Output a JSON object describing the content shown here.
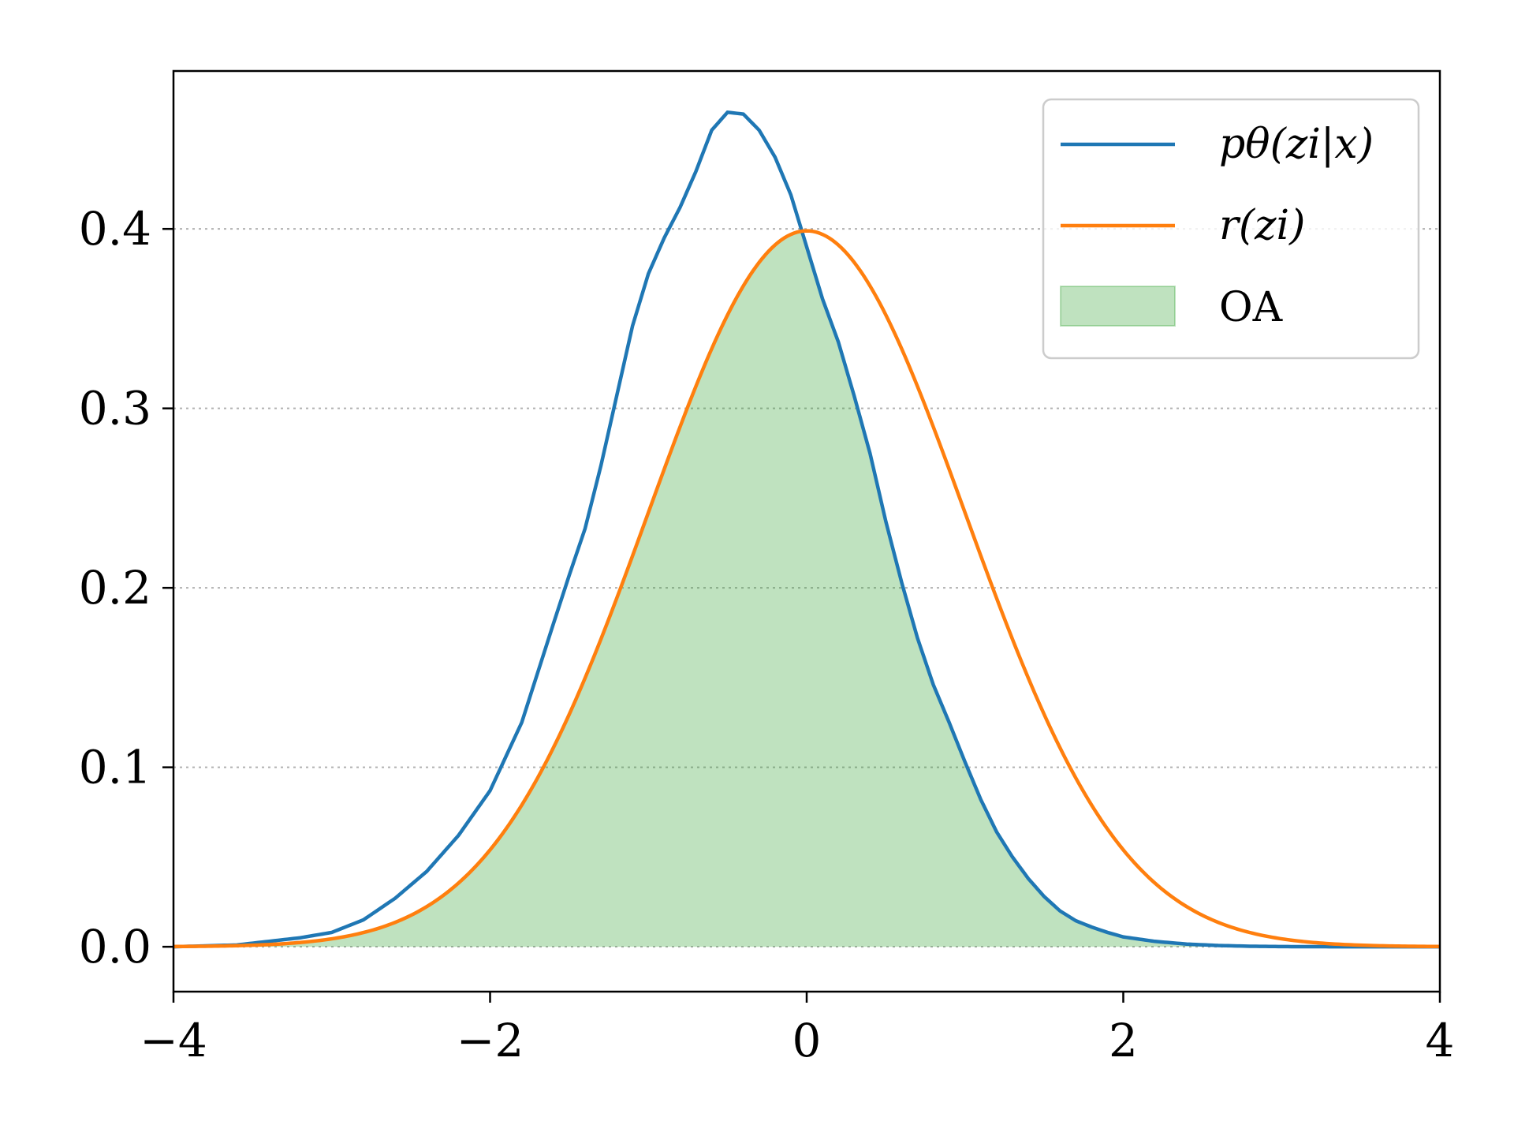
{
  "chart_data": {
    "type": "line",
    "xlim": [
      -4,
      4
    ],
    "ylim": [
      -0.025,
      0.488
    ],
    "x_ticks": [
      -4,
      -2,
      0,
      2,
      4
    ],
    "x_tick_labels": [
      "−4",
      "−2",
      "0",
      "2",
      "4"
    ],
    "y_ticks": [
      0.0,
      0.1,
      0.2,
      0.3,
      0.4
    ],
    "y_tick_labels": [
      "0.0",
      "0.1",
      "0.2",
      "0.3",
      "0.4"
    ],
    "grid": "horizontal-dotted",
    "legend_position": "top-right",
    "series": [
      {
        "name": "pθ(zi|x)",
        "color": "#1f77b4",
        "x": [
          -4.0,
          -3.6,
          -3.4,
          -3.2,
          -3.0,
          -2.8,
          -2.6,
          -2.4,
          -2.2,
          -2.0,
          -1.8,
          -1.6,
          -1.5,
          -1.4,
          -1.3,
          -1.2,
          -1.1,
          -1.0,
          -0.9,
          -0.8,
          -0.7,
          -0.6,
          -0.5,
          -0.4,
          -0.3,
          -0.2,
          -0.1,
          0.0,
          0.1,
          0.2,
          0.3,
          0.4,
          0.5,
          0.6,
          0.7,
          0.8,
          0.9,
          1.0,
          1.1,
          1.2,
          1.3,
          1.4,
          1.5,
          1.6,
          1.7,
          1.8,
          1.9,
          2.0,
          2.2,
          2.4,
          2.6,
          2.8,
          3.0,
          3.4,
          4.0
        ],
        "y": [
          0.0,
          0.001,
          0.003,
          0.005,
          0.008,
          0.015,
          0.027,
          0.042,
          0.062,
          0.087,
          0.125,
          0.18,
          0.207,
          0.233,
          0.268,
          0.307,
          0.346,
          0.375,
          0.395,
          0.412,
          0.432,
          0.455,
          0.465,
          0.464,
          0.455,
          0.44,
          0.419,
          0.39,
          0.361,
          0.337,
          0.307,
          0.275,
          0.237,
          0.203,
          0.172,
          0.146,
          0.125,
          0.103,
          0.082,
          0.064,
          0.05,
          0.038,
          0.028,
          0.02,
          0.0145,
          0.011,
          0.008,
          0.0055,
          0.003,
          0.0015,
          0.0007,
          0.0003,
          0.0001,
          0.0,
          0.0
        ]
      },
      {
        "name": "r(zi)",
        "color": "#ff7f0e",
        "distribution": "standard-normal"
      }
    ],
    "fill": {
      "name": "OA",
      "color": "#2ca02c",
      "opacity": 0.3,
      "between": "min-of-series"
    }
  },
  "legend": {
    "items": [
      {
        "id": "p",
        "label": "pθ(zi|x)",
        "color": "#1f77b4",
        "kind": "line"
      },
      {
        "id": "r",
        "label": "r(zi)",
        "color": "#ff7f0e",
        "kind": "line"
      },
      {
        "id": "oa",
        "label": "OA",
        "color": "#2ca02c",
        "kind": "patch"
      }
    ]
  }
}
